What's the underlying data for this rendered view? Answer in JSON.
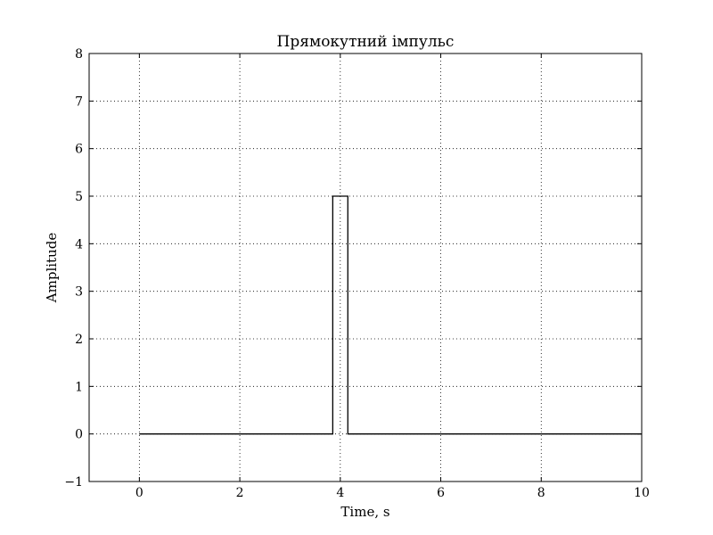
{
  "chart_data": {
    "type": "line",
    "title": "Прямокутний імпульс",
    "xlabel": "Time, s",
    "ylabel": "Amplitude",
    "xlim": [
      -1,
      10
    ],
    "ylim": [
      -1,
      8
    ],
    "xticks": [
      0,
      2,
      4,
      6,
      8,
      10
    ],
    "xtick_labels": [
      "0",
      "2",
      "4",
      "6",
      "8",
      "10"
    ],
    "yticks": [
      -1,
      0,
      1,
      2,
      3,
      4,
      5,
      6,
      7,
      8
    ],
    "ytick_labels": [
      "−1",
      "0",
      "1",
      "2",
      "3",
      "4",
      "5",
      "6",
      "7",
      "8"
    ],
    "grid": true,
    "grid_style": "dotted",
    "series": [
      {
        "color": "#000000",
        "step": true,
        "x": [
          0,
          3.85,
          3.85,
          4.15,
          4.15,
          10
        ],
        "y": [
          0,
          0,
          5,
          5,
          0,
          0
        ]
      }
    ]
  }
}
